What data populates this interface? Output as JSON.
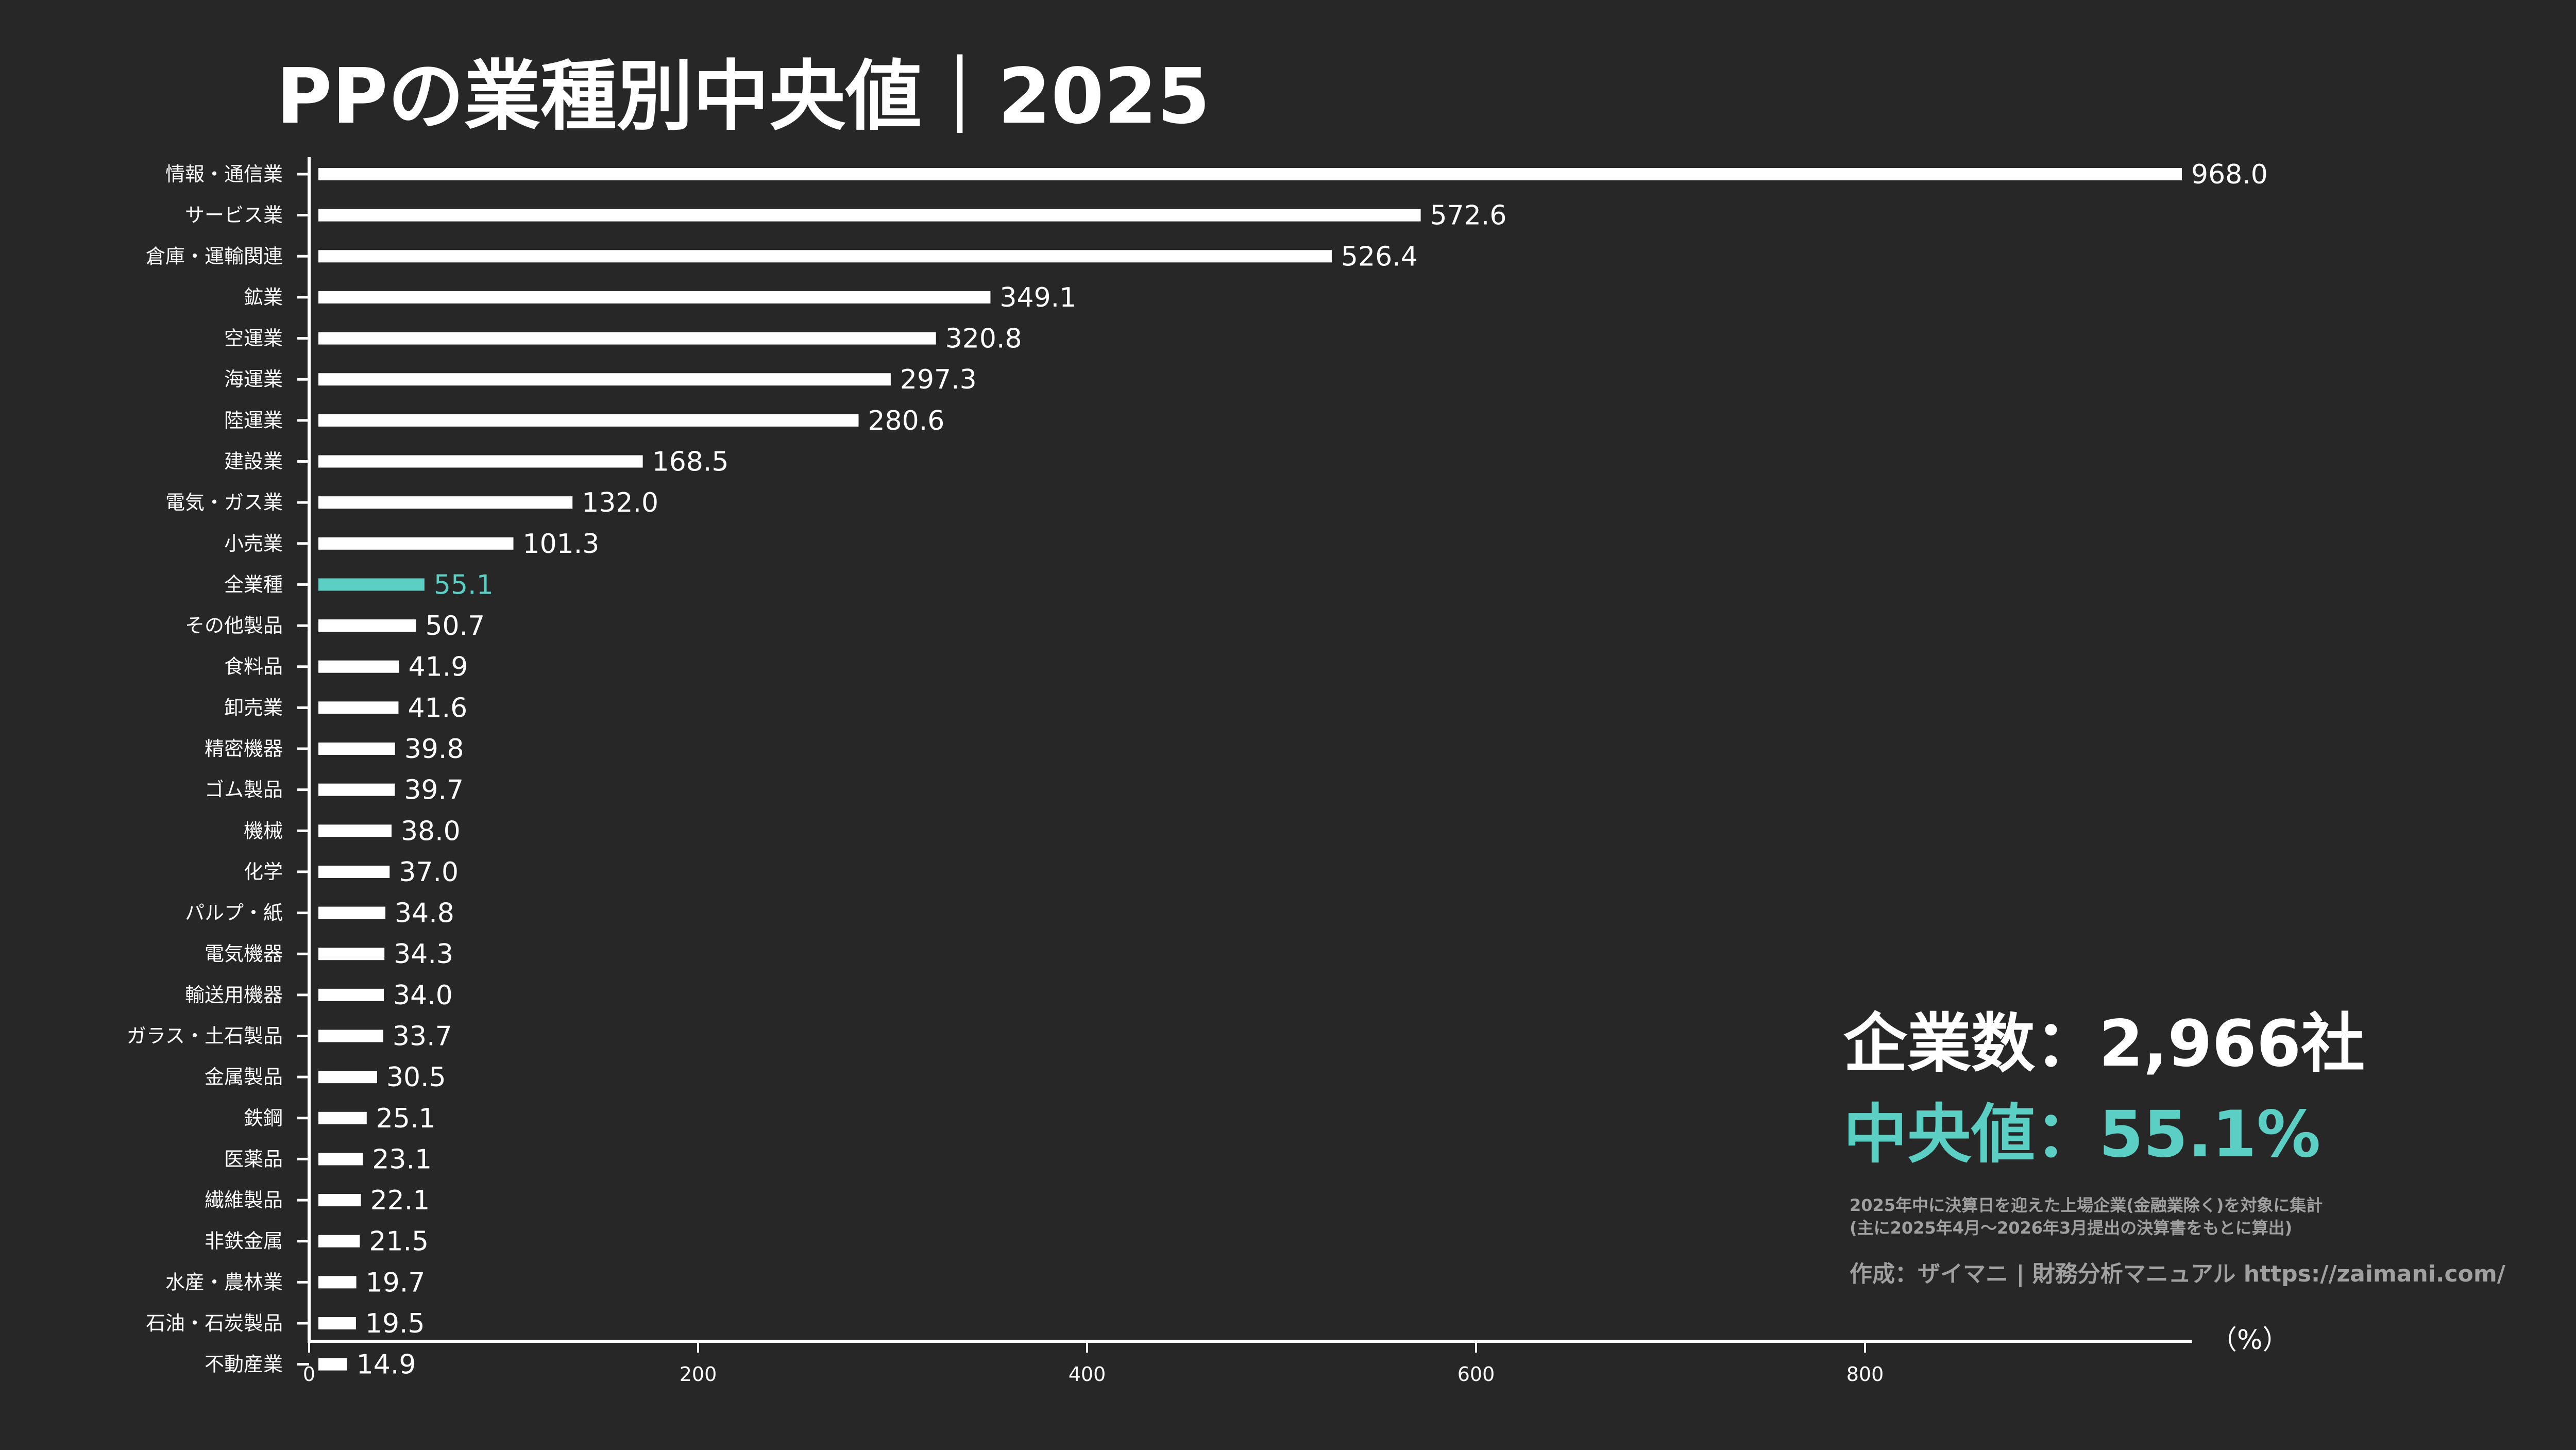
{
  "title": "PPの業種別中央値｜2025",
  "colors": {
    "background": "#272727",
    "bar": "#ffffff",
    "highlight": "#5ccfc5",
    "note": "#a0a0a0"
  },
  "chart_data": {
    "type": "bar",
    "orientation": "horizontal",
    "title": "PPの業種別中央値｜2025",
    "xlabel": "",
    "unit_label": "（%）",
    "xlim": [
      0,
      968
    ],
    "xticks": [
      0,
      200,
      400,
      600,
      800
    ],
    "grid": false,
    "highlight_category": "全業種",
    "categories": [
      "情報・通信業",
      "サービス業",
      "倉庫・運輸関連",
      "鉱業",
      "空運業",
      "海運業",
      "陸運業",
      "建設業",
      "電気・ガス業",
      "小売業",
      "全業種",
      "その他製品",
      "食料品",
      "卸売業",
      "精密機器",
      "ゴム製品",
      "機械",
      "化学",
      "パルプ・紙",
      "電気機器",
      "輸送用機器",
      "ガラス・土石製品",
      "金属製品",
      "鉄鋼",
      "医薬品",
      "繊維製品",
      "非鉄金属",
      "水産・農林業",
      "石油・石炭製品",
      "不動産業"
    ],
    "values": [
      968.0,
      572.6,
      526.4,
      349.1,
      320.8,
      297.3,
      280.6,
      168.5,
      132.0,
      101.3,
      55.1,
      50.7,
      41.9,
      41.6,
      39.8,
      39.7,
      38.0,
      37.0,
      34.8,
      34.3,
      34.0,
      33.7,
      30.5,
      25.1,
      23.1,
      22.1,
      21.5,
      19.7,
      19.5,
      14.9
    ],
    "value_labels": [
      "968.0",
      "572.6",
      "526.4",
      "349.1",
      "320.8",
      "297.3",
      "280.6",
      "168.5",
      "132.0",
      "101.3",
      "55.1",
      "50.7",
      "41.9",
      "41.6",
      "39.8",
      "39.7",
      "38.0",
      "37.0",
      "34.8",
      "34.3",
      "34.0",
      "33.7",
      "30.5",
      "25.1",
      "23.1",
      "22.1",
      "21.5",
      "19.7",
      "19.5",
      "14.9"
    ]
  },
  "summary": {
    "companies": "企業数：2,966社",
    "median": "中央値：55.1%"
  },
  "notes": {
    "line1": "2025年中に決算日を迎えた上場企業(金融業除く)を対象に集計",
    "line2": "(主に2025年4月～2026年3月提出の決算書をもとに算出)",
    "credit": "作成：ザイマニ | 財務分析マニュアル https://zaimani.com/"
  }
}
